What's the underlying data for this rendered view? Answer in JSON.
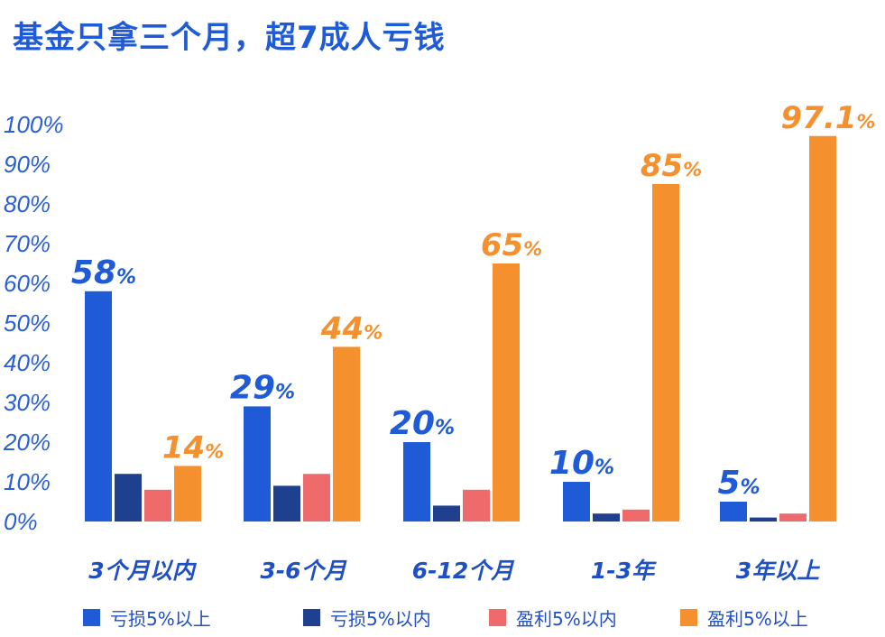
{
  "title": "基金只拿三个月，超7成人亏钱",
  "chart_data": {
    "type": "bar",
    "categories": [
      "3个月以内",
      "3-6个月",
      "6-12个月",
      "1-3年",
      "3年以上"
    ],
    "series": [
      {
        "name": "亏损5%以上",
        "color": "#1f5bd6",
        "values": [
          58,
          29,
          20,
          10,
          5
        ]
      },
      {
        "name": "亏损5%以内",
        "color": "#1f3f8f",
        "values": [
          12,
          9,
          4,
          2,
          1
        ]
      },
      {
        "name": "盈利5%以内",
        "color": "#ef6a6a",
        "values": [
          8,
          12,
          8,
          3,
          2
        ]
      },
      {
        "name": "盈利5%以上",
        "color": "#f5902f",
        "values": [
          14,
          44,
          65,
          85,
          97.1
        ]
      }
    ],
    "data_labels": [
      {
        "category": "3个月以内",
        "series": "亏损5%以上",
        "number": "58",
        "unit": "%"
      },
      {
        "category": "3个月以内",
        "series": "盈利5%以上",
        "number": "14",
        "unit": "%"
      },
      {
        "category": "3-6个月",
        "series": "亏损5%以上",
        "number": "29",
        "unit": "%"
      },
      {
        "category": "3-6个月",
        "series": "盈利5%以上",
        "number": "44",
        "unit": "%"
      },
      {
        "category": "6-12个月",
        "series": "亏损5%以上",
        "number": "20",
        "unit": "%"
      },
      {
        "category": "6-12个月",
        "series": "盈利5%以上",
        "number": "65",
        "unit": "%"
      },
      {
        "category": "1-3年",
        "series": "亏损5%以上",
        "number": "10",
        "unit": "%"
      },
      {
        "category": "1-3年",
        "series": "盈利5%以上",
        "number": "85",
        "unit": "%"
      },
      {
        "category": "3年以上",
        "series": "亏损5%以上",
        "number": "5",
        "unit": "%"
      },
      {
        "category": "3年以上",
        "series": "盈利5%以上",
        "number": "97.1",
        "unit": "%"
      }
    ],
    "yticks": [
      "0%",
      "10%",
      "20%",
      "30%",
      "40%",
      "50%",
      "60%",
      "70%",
      "80%",
      "90%",
      "100%"
    ],
    "ylim": [
      0,
      100
    ],
    "grid": false,
    "legend_position": "bottom"
  }
}
